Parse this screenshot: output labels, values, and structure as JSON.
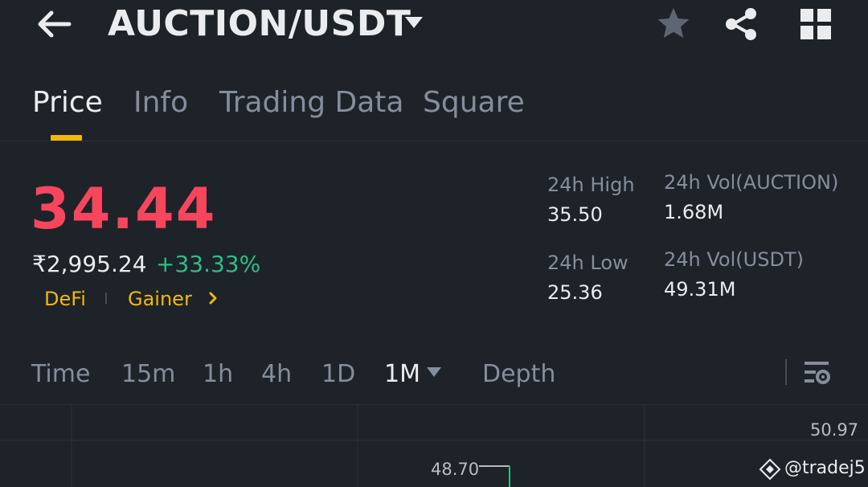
{
  "header": {
    "pair": "AUCTION/USDT",
    "icons": {
      "back": "back-arrow-icon",
      "dropdown": "chevron-down-icon",
      "favorite": "star-icon",
      "share": "share-icon",
      "more": "grid-icon"
    }
  },
  "tabs": [
    {
      "label": "Price",
      "active": true
    },
    {
      "label": "Info",
      "active": false
    },
    {
      "label": "Trading Data",
      "active": false
    },
    {
      "label": "Square",
      "active": false
    }
  ],
  "price": {
    "last": "34.44",
    "fiat": "₹2,995.24",
    "change": "+33.33%",
    "tags": [
      "DeFi",
      "Gainer"
    ]
  },
  "stats": {
    "high_label": "24h High",
    "high_value": "35.50",
    "low_label": "24h Low",
    "low_value": "25.36",
    "vol_base_label": "24h Vol(AUCTION)",
    "vol_base_value": "1.68M",
    "vol_quote_label": "24h Vol(USDT)",
    "vol_quote_value": "49.31M"
  },
  "intervals": [
    {
      "label": "Time",
      "active": false
    },
    {
      "label": "15m",
      "active": false
    },
    {
      "label": "1h",
      "active": false
    },
    {
      "label": "4h",
      "active": false
    },
    {
      "label": "1D",
      "active": false
    },
    {
      "label": "1M",
      "active": true
    },
    {
      "label": "Depth",
      "active": false
    }
  ],
  "chart": {
    "axis_top": "50.97",
    "high_marker": "48.70",
    "watermark": "@tradej5"
  },
  "colors": {
    "background": "#1e2329",
    "accent": "#f0b90b",
    "down": "#f6465d",
    "up": "#2ebd85",
    "muted": "#848e9c"
  }
}
